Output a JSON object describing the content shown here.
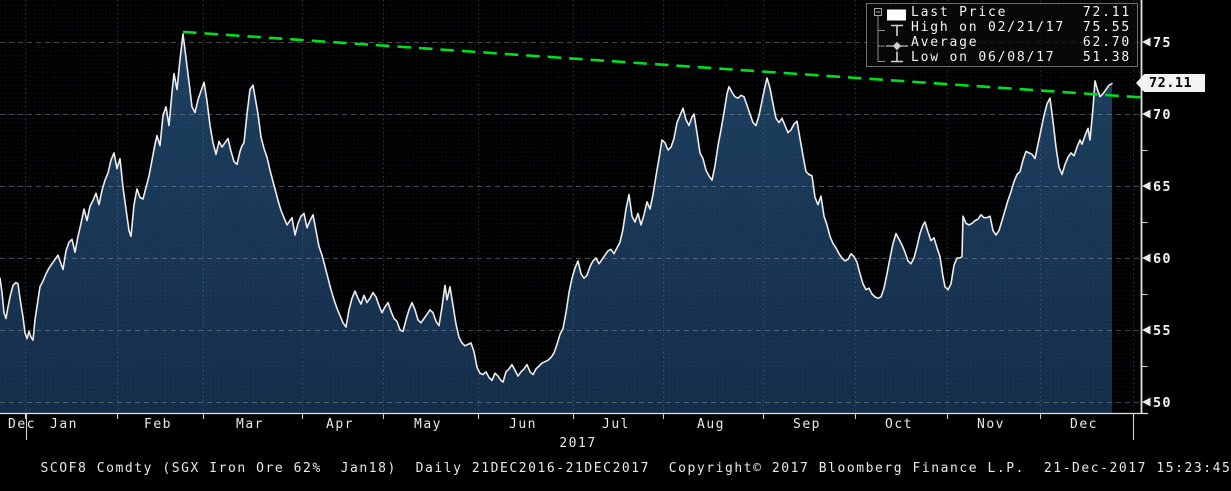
{
  "chart_data": {
    "type": "area",
    "title": "SCOF8 Comdty (SGX Iron Ore 62% Jan18)",
    "subtitle": "Daily 21DEC2016-21DEC2017",
    "xlabel": "",
    "ylabel": "",
    "yticks": [
      50,
      55,
      60,
      65,
      70,
      75
    ],
    "yticks_minor": [
      52.5,
      57.5,
      62.5,
      67.5,
      72.5
    ],
    "ylim_visible": [
      49.3,
      77.9
    ],
    "grid": "on",
    "legend_position": "top-right",
    "months": [
      {
        "label": "Dec",
        "x": 22
      },
      {
        "label": "Jan",
        "x": 64
      },
      {
        "label": "Feb",
        "x": 158
      },
      {
        "label": "Mar",
        "x": 250
      },
      {
        "label": "Apr",
        "x": 340
      },
      {
        "label": "May",
        "x": 428
      },
      {
        "label": "Jun",
        "x": 523
      },
      {
        "label": "Jul",
        "x": 616
      },
      {
        "label": "Aug",
        "x": 711
      },
      {
        "label": "Sep",
        "x": 807
      },
      {
        "label": "Oct",
        "x": 899
      },
      {
        "label": "Nov",
        "x": 991
      },
      {
        "label": "Dec",
        "x": 1084
      }
    ],
    "month_gridlines_x": [
      25,
      117,
      203,
      302,
      383,
      478,
      573,
      663,
      763,
      855,
      947,
      1040,
      1133
    ],
    "year_ticks_x": [
      26,
      1133
    ],
    "year_label": {
      "text": "2017",
      "x": 578
    },
    "stats": {
      "last_price": 72.11,
      "high": 75.55,
      "high_date": "02/21/17",
      "average": 62.7,
      "low": 51.38,
      "low_date": "06/08/17"
    },
    "trendline": {
      "x1": 183,
      "price1": 75.7,
      "x2": 1141,
      "price2": 71.15,
      "style": "dashed"
    },
    "points": [
      [
        0,
        58.6
      ],
      [
        2,
        57.6
      ],
      [
        4,
        56.2
      ],
      [
        6,
        55.8
      ],
      [
        8,
        56.6
      ],
      [
        10,
        57.3
      ],
      [
        13,
        58.1
      ],
      [
        16,
        58.3
      ],
      [
        18,
        58.2
      ],
      [
        20,
        57.2
      ],
      [
        23,
        55.9
      ],
      [
        25,
        54.8
      ],
      [
        27,
        54.4
      ],
      [
        29,
        54.9
      ],
      [
        31,
        54.5
      ],
      [
        33,
        54.3
      ],
      [
        35,
        55.7
      ],
      [
        38,
        57.1
      ],
      [
        40,
        58.0
      ],
      [
        43,
        58.4
      ],
      [
        46,
        58.9
      ],
      [
        49,
        59.3
      ],
      [
        52,
        59.6
      ],
      [
        55,
        59.9
      ],
      [
        58,
        60.2
      ],
      [
        61,
        59.6
      ],
      [
        63,
        59.2
      ],
      [
        66,
        60.5
      ],
      [
        69,
        61.1
      ],
      [
        72,
        61.3
      ],
      [
        75,
        60.4
      ],
      [
        78,
        61.5
      ],
      [
        81,
        62.4
      ],
      [
        84,
        63.4
      ],
      [
        87,
        62.6
      ],
      [
        90,
        63.6
      ],
      [
        93,
        64.0
      ],
      [
        96,
        64.5
      ],
      [
        99,
        63.7
      ],
      [
        102,
        64.7
      ],
      [
        105,
        65.4
      ],
      [
        108,
        65.9
      ],
      [
        111,
        66.8
      ],
      [
        114,
        67.3
      ],
      [
        117,
        66.2
      ],
      [
        120,
        66.9
      ],
      [
        123,
        64.9
      ],
      [
        126,
        63.4
      ],
      [
        129,
        61.9
      ],
      [
        131,
        61.5
      ],
      [
        134,
        63.7
      ],
      [
        137,
        64.8
      ],
      [
        140,
        64.2
      ],
      [
        143,
        64.1
      ],
      [
        146,
        64.9
      ],
      [
        149,
        65.7
      ],
      [
        152,
        66.8
      ],
      [
        155,
        67.9
      ],
      [
        157,
        68.5
      ],
      [
        160,
        67.8
      ],
      [
        163,
        69.9
      ],
      [
        166,
        70.5
      ],
      [
        169,
        69.2
      ],
      [
        172,
        71.5
      ],
      [
        174,
        72.8
      ],
      [
        177,
        71.7
      ],
      [
        180,
        73.8
      ],
      [
        183,
        75.55
      ],
      [
        186,
        73.9
      ],
      [
        189,
        72.2
      ],
      [
        192,
        70.5
      ],
      [
        195,
        70.1
      ],
      [
        198,
        71.0
      ],
      [
        201,
        71.6
      ],
      [
        204,
        72.2
      ],
      [
        207,
        70.9
      ],
      [
        210,
        69.2
      ],
      [
        213,
        68.0
      ],
      [
        216,
        67.2
      ],
      [
        219,
        68.1
      ],
      [
        222,
        67.7
      ],
      [
        225,
        68.0
      ],
      [
        228,
        68.3
      ],
      [
        231,
        67.4
      ],
      [
        234,
        66.7
      ],
      [
        237,
        66.5
      ],
      [
        240,
        67.4
      ],
      [
        242,
        67.8
      ],
      [
        244,
        68.0
      ],
      [
        247,
        70.0
      ],
      [
        250,
        71.7
      ],
      [
        253,
        72.0
      ],
      [
        255,
        71.2
      ],
      [
        258,
        70.0
      ],
      [
        261,
        68.4
      ],
      [
        264,
        67.6
      ],
      [
        267,
        67.0
      ],
      [
        270,
        66.1
      ],
      [
        273,
        65.3
      ],
      [
        275,
        64.8
      ],
      [
        278,
        64.0
      ],
      [
        281,
        63.3
      ],
      [
        284,
        62.8
      ],
      [
        287,
        62.3
      ],
      [
        290,
        62.6
      ],
      [
        292,
        62.8
      ],
      [
        295,
        61.6
      ],
      [
        298,
        62.4
      ],
      [
        301,
        62.9
      ],
      [
        304,
        63.1
      ],
      [
        307,
        62.1
      ],
      [
        310,
        62.6
      ],
      [
        313,
        63.0
      ],
      [
        316,
        61.9
      ],
      [
        319,
        60.8
      ],
      [
        322,
        60.2
      ],
      [
        325,
        59.4
      ],
      [
        328,
        58.6
      ],
      [
        331,
        57.8
      ],
      [
        334,
        57.1
      ],
      [
        337,
        56.5
      ],
      [
        340,
        56.0
      ],
      [
        343,
        55.5
      ],
      [
        346,
        55.2
      ],
      [
        349,
        56.4
      ],
      [
        352,
        57.2
      ],
      [
        355,
        57.7
      ],
      [
        358,
        57.2
      ],
      [
        361,
        56.8
      ],
      [
        364,
        57.4
      ],
      [
        367,
        56.9
      ],
      [
        370,
        57.2
      ],
      [
        373,
        57.6
      ],
      [
        376,
        57.3
      ],
      [
        379,
        56.7
      ],
      [
        382,
        56.2
      ],
      [
        385,
        56.6
      ],
      [
        388,
        56.9
      ],
      [
        391,
        56.3
      ],
      [
        394,
        55.8
      ],
      [
        397,
        55.6
      ],
      [
        400,
        55.0
      ],
      [
        403,
        54.9
      ],
      [
        406,
        55.7
      ],
      [
        409,
        56.4
      ],
      [
        412,
        56.9
      ],
      [
        415,
        56.4
      ],
      [
        418,
        55.7
      ],
      [
        421,
        55.5
      ],
      [
        424,
        55.8
      ],
      [
        427,
        56.1
      ],
      [
        430,
        56.4
      ],
      [
        433,
        56.2
      ],
      [
        436,
        55.6
      ],
      [
        439,
        55.3
      ],
      [
        442,
        56.6
      ],
      [
        445,
        58.1
      ],
      [
        447,
        57.1
      ],
      [
        450,
        58.0
      ],
      [
        453,
        56.7
      ],
      [
        456,
        55.4
      ],
      [
        459,
        54.5
      ],
      [
        462,
        54.1
      ],
      [
        465,
        53.9
      ],
      [
        468,
        54.0
      ],
      [
        471,
        54.1
      ],
      [
        474,
        53.5
      ],
      [
        477,
        52.4
      ],
      [
        480,
        52.0
      ],
      [
        483,
        51.9
      ],
      [
        486,
        52.1
      ],
      [
        489,
        51.7
      ],
      [
        492,
        51.5
      ],
      [
        495,
        52.0
      ],
      [
        498,
        51.8
      ],
      [
        501,
        51.5
      ],
      [
        503,
        51.38
      ],
      [
        506,
        52.1
      ],
      [
        509,
        52.3
      ],
      [
        512,
        52.6
      ],
      [
        515,
        52.2
      ],
      [
        518,
        51.8
      ],
      [
        521,
        52.1
      ],
      [
        524,
        52.3
      ],
      [
        527,
        52.6
      ],
      [
        530,
        52.1
      ],
      [
        533,
        51.9
      ],
      [
        536,
        52.3
      ],
      [
        539,
        52.5
      ],
      [
        542,
        52.7
      ],
      [
        545,
        52.8
      ],
      [
        548,
        52.9
      ],
      [
        551,
        53.1
      ],
      [
        554,
        53.4
      ],
      [
        557,
        54.0
      ],
      [
        560,
        54.7
      ],
      [
        563,
        55.1
      ],
      [
        566,
        56.2
      ],
      [
        569,
        57.6
      ],
      [
        572,
        58.6
      ],
      [
        575,
        59.3
      ],
      [
        578,
        59.8
      ],
      [
        581,
        58.9
      ],
      [
        584,
        58.6
      ],
      [
        587,
        58.8
      ],
      [
        590,
        59.4
      ],
      [
        593,
        59.8
      ],
      [
        596,
        60.0
      ],
      [
        599,
        59.6
      ],
      [
        602,
        59.9
      ],
      [
        605,
        60.2
      ],
      [
        608,
        60.5
      ],
      [
        611,
        60.6
      ],
      [
        614,
        60.3
      ],
      [
        617,
        60.7
      ],
      [
        620,
        61.1
      ],
      [
        623,
        62.0
      ],
      [
        626,
        63.4
      ],
      [
        629,
        64.4
      ],
      [
        632,
        62.9
      ],
      [
        635,
        62.5
      ],
      [
        638,
        63.1
      ],
      [
        641,
        62.3
      ],
      [
        644,
        63.0
      ],
      [
        647,
        63.9
      ],
      [
        650,
        63.4
      ],
      [
        653,
        64.4
      ],
      [
        656,
        65.7
      ],
      [
        659,
        66.9
      ],
      [
        662,
        68.2
      ],
      [
        665,
        68.0
      ],
      [
        668,
        67.5
      ],
      [
        671,
        67.7
      ],
      [
        674,
        68.3
      ],
      [
        677,
        69.4
      ],
      [
        680,
        69.9
      ],
      [
        683,
        70.4
      ],
      [
        686,
        69.6
      ],
      [
        689,
        69.2
      ],
      [
        692,
        69.8
      ],
      [
        694,
        70.0
      ],
      [
        697,
        68.7
      ],
      [
        700,
        67.3
      ],
      [
        703,
        66.9
      ],
      [
        706,
        66.1
      ],
      [
        709,
        65.7
      ],
      [
        712,
        65.4
      ],
      [
        715,
        66.4
      ],
      [
        718,
        67.8
      ],
      [
        721,
        68.9
      ],
      [
        724,
        70.1
      ],
      [
        727,
        71.4
      ],
      [
        729,
        71.9
      ],
      [
        732,
        71.5
      ],
      [
        735,
        71.2
      ],
      [
        738,
        71.1
      ],
      [
        741,
        71.3
      ],
      [
        744,
        71.2
      ],
      [
        747,
        70.6
      ],
      [
        750,
        70.0
      ],
      [
        753,
        69.4
      ],
      [
        756,
        69.2
      ],
      [
        759,
        69.9
      ],
      [
        762,
        70.9
      ],
      [
        765,
        71.9
      ],
      [
        767,
        72.5
      ],
      [
        770,
        71.8
      ],
      [
        773,
        70.7
      ],
      [
        776,
        69.7
      ],
      [
        779,
        69.4
      ],
      [
        782,
        69.7
      ],
      [
        785,
        69.2
      ],
      [
        788,
        68.7
      ],
      [
        791,
        68.9
      ],
      [
        794,
        69.3
      ],
      [
        797,
        69.5
      ],
      [
        800,
        68.3
      ],
      [
        803,
        67.1
      ],
      [
        806,
        66.0
      ],
      [
        809,
        65.8
      ],
      [
        812,
        65.7
      ],
      [
        815,
        64.2
      ],
      [
        818,
        63.7
      ],
      [
        821,
        64.3
      ],
      [
        824,
        62.9
      ],
      [
        827,
        62.3
      ],
      [
        830,
        61.5
      ],
      [
        833,
        61.0
      ],
      [
        836,
        60.7
      ],
      [
        839,
        60.3
      ],
      [
        842,
        60.0
      ],
      [
        845,
        59.8
      ],
      [
        848,
        59.9
      ],
      [
        851,
        60.3
      ],
      [
        854,
        60.1
      ],
      [
        857,
        59.7
      ],
      [
        860,
        58.9
      ],
      [
        863,
        58.2
      ],
      [
        866,
        57.8
      ],
      [
        869,
        57.9
      ],
      [
        872,
        57.5
      ],
      [
        875,
        57.3
      ],
      [
        878,
        57.2
      ],
      [
        881,
        57.3
      ],
      [
        884,
        57.9
      ],
      [
        887,
        58.9
      ],
      [
        890,
        60.0
      ],
      [
        893,
        61.0
      ],
      [
        896,
        61.7
      ],
      [
        899,
        61.3
      ],
      [
        902,
        60.9
      ],
      [
        905,
        60.4
      ],
      [
        908,
        59.8
      ],
      [
        911,
        59.6
      ],
      [
        914,
        60.0
      ],
      [
        917,
        60.8
      ],
      [
        920,
        61.7
      ],
      [
        923,
        62.3
      ],
      [
        925,
        62.5
      ],
      [
        928,
        61.8
      ],
      [
        931,
        61.2
      ],
      [
        934,
        61.4
      ],
      [
        937,
        60.7
      ],
      [
        940,
        60.1
      ],
      [
        943,
        58.7
      ],
      [
        945,
        58.0
      ],
      [
        948,
        57.8
      ],
      [
        951,
        58.2
      ],
      [
        954,
        59.5
      ],
      [
        957,
        60.0
      ],
      [
        960,
        60.0
      ],
      [
        962,
        60.1
      ],
      [
        963,
        62.9
      ],
      [
        966,
        62.4
      ],
      [
        969,
        62.3
      ],
      [
        972,
        62.4
      ],
      [
        975,
        62.6
      ],
      [
        978,
        62.7
      ],
      [
        981,
        63.0
      ],
      [
        984,
        62.8
      ],
      [
        987,
        62.8
      ],
      [
        990,
        62.9
      ],
      [
        993,
        61.9
      ],
      [
        996,
        61.6
      ],
      [
        999,
        61.9
      ],
      [
        1002,
        62.6
      ],
      [
        1005,
        63.3
      ],
      [
        1008,
        64.0
      ],
      [
        1011,
        64.6
      ],
      [
        1014,
        65.3
      ],
      [
        1017,
        65.8
      ],
      [
        1020,
        66.0
      ],
      [
        1023,
        66.8
      ],
      [
        1026,
        67.4
      ],
      [
        1029,
        67.3
      ],
      [
        1032,
        67.2
      ],
      [
        1035,
        66.9
      ],
      [
        1038,
        67.9
      ],
      [
        1041,
        68.9
      ],
      [
        1044,
        69.9
      ],
      [
        1047,
        70.7
      ],
      [
        1050,
        71.1
      ],
      [
        1053,
        69.5
      ],
      [
        1056,
        67.7
      ],
      [
        1059,
        66.3
      ],
      [
        1062,
        65.8
      ],
      [
        1065,
        66.5
      ],
      [
        1068,
        67.0
      ],
      [
        1071,
        67.3
      ],
      [
        1074,
        67.1
      ],
      [
        1077,
        67.7
      ],
      [
        1080,
        68.2
      ],
      [
        1082,
        67.9
      ],
      [
        1085,
        68.5
      ],
      [
        1088,
        69.0
      ],
      [
        1090,
        68.2
      ],
      [
        1093,
        70.4
      ],
      [
        1095,
        72.3
      ],
      [
        1097,
        71.8
      ],
      [
        1100,
        71.2
      ],
      [
        1103,
        71.4
      ],
      [
        1106,
        71.7
      ],
      [
        1109,
        72.0
      ],
      [
        1112,
        72.11
      ]
    ],
    "colors": {
      "background": "#000000",
      "line": "#ededed",
      "area_top": "#1d3f60",
      "area_bottom": "#142d49",
      "grid": "#8a98a6",
      "axis": "#e2e2e2",
      "trend_green": "#00df1f",
      "label_text": "#f5f5f5"
    }
  },
  "legend": {
    "items": [
      {
        "icon": "last-price-swatch",
        "label": "Last Price",
        "value": "72.11"
      },
      {
        "icon": "high-marker",
        "label": "High on 02/21/17",
        "value": "75.55"
      },
      {
        "icon": "average-marker",
        "label": "Average",
        "value": "62.70"
      },
      {
        "icon": "low-marker",
        "label": "Low on 06/08/17",
        "value": "51.38"
      }
    ]
  },
  "badge": {
    "value": "72.11"
  },
  "footer": {
    "text": "SCOF8 Comdty (SGX Iron Ore 62%  Jan18)  Daily 21DEC2016-21DEC2017  Copyright© 2017 Bloomberg Finance L.P.  21-Dec-2017 15:23:45"
  }
}
